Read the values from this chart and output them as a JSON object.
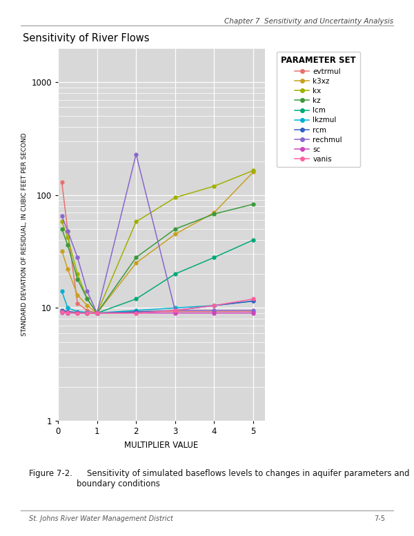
{
  "title": "Sensitivity of River Flows",
  "xlabel": "MULTIPLIER VALUE",
  "ylabel": "STANDARD DEVIATION OF RESIDUAL, IN CUBIC FEET PER SECOND",
  "xlim": [
    0,
    5.3
  ],
  "ylim": [
    1,
    2000
  ],
  "background_color": "#d8d8d8",
  "legend_title": "PARAMETER SET",
  "series": [
    {
      "name": "evtrmul",
      "color": "#e87070",
      "x": [
        0.1,
        0.25,
        0.5,
        0.75,
        1.0,
        2.0,
        3.0,
        4.0,
        5.0
      ],
      "y": [
        130,
        48,
        11,
        9.5,
        9.0,
        9.3,
        9.3,
        9.3,
        9.3
      ]
    },
    {
      "name": "k3xz",
      "color": "#c8a020",
      "x": [
        0.1,
        0.25,
        0.5,
        0.75,
        1.0,
        2.0,
        3.0,
        4.0,
        5.0
      ],
      "y": [
        32,
        22,
        13,
        10.5,
        9.0,
        25,
        45,
        70,
        160
      ]
    },
    {
      "name": "kx",
      "color": "#a0b000",
      "x": [
        0.1,
        0.25,
        0.5,
        0.75,
        1.0,
        2.0,
        3.0,
        4.0,
        5.0
      ],
      "y": [
        58,
        42,
        20,
        12,
        9.0,
        58,
        95,
        120,
        165
      ]
    },
    {
      "name": "kz",
      "color": "#3a9a3a",
      "x": [
        0.1,
        0.25,
        0.5,
        0.75,
        1.0,
        2.0,
        3.0,
        4.0,
        5.0
      ],
      "y": [
        50,
        36,
        18,
        12,
        9.0,
        28,
        50,
        68,
        83
      ]
    },
    {
      "name": "lcm",
      "color": "#00a878",
      "x": [
        0.1,
        0.25,
        0.5,
        0.75,
        1.0,
        2.0,
        3.0,
        4.0,
        5.0
      ],
      "y": [
        9.3,
        9.2,
        9.1,
        9.0,
        9.0,
        12,
        20,
        28,
        40
      ]
    },
    {
      "name": "lkzmul",
      "color": "#00b0d0",
      "x": [
        0.1,
        0.25,
        0.5,
        0.75,
        1.0,
        2.0,
        3.0,
        4.0,
        5.0
      ],
      "y": [
        14,
        10,
        9.3,
        9.1,
        9.0,
        9.5,
        10,
        10.5,
        11.5
      ]
    },
    {
      "name": "rcm",
      "color": "#3060c0",
      "x": [
        0.1,
        0.25,
        0.5,
        0.75,
        1.0,
        2.0,
        3.0,
        4.0,
        5.0
      ],
      "y": [
        9.5,
        9.3,
        9.1,
        9.0,
        9.0,
        9.2,
        9.5,
        10.5,
        11.5
      ]
    },
    {
      "name": "rechmul",
      "color": "#8866cc",
      "x": [
        0.1,
        0.25,
        0.5,
        0.75,
        1.0,
        2.0,
        3.0,
        4.0,
        5.0
      ],
      "y": [
        65,
        48,
        28,
        14,
        9.0,
        230,
        9.5,
        9.5,
        9.5
      ]
    },
    {
      "name": "sc",
      "color": "#cc44bb",
      "x": [
        0.1,
        0.25,
        0.5,
        0.75,
        1.0,
        2.0,
        3.0,
        4.0,
        5.0
      ],
      "y": [
        9.1,
        9.0,
        9.0,
        9.0,
        9.0,
        9.0,
        9.0,
        9.0,
        9.0
      ]
    },
    {
      "name": "vanis",
      "color": "#ff60a0",
      "x": [
        0.1,
        0.25,
        0.5,
        0.75,
        1.0,
        2.0,
        3.0,
        4.0,
        5.0
      ],
      "y": [
        9.2,
        9.1,
        9.0,
        9.0,
        9.0,
        9.0,
        9.5,
        10.5,
        12
      ]
    }
  ],
  "caption_bold": "Figure 7-2.",
  "caption_normal": "    Sensitivity of simulated baseflows levels to changes in aquifer parameters and\nboundary conditions",
  "header_text": "Chapter 7  Sensitivity and Uncertainty Analysis",
  "footer_left": "St. Johns River Water Management District",
  "footer_right": "7-5"
}
